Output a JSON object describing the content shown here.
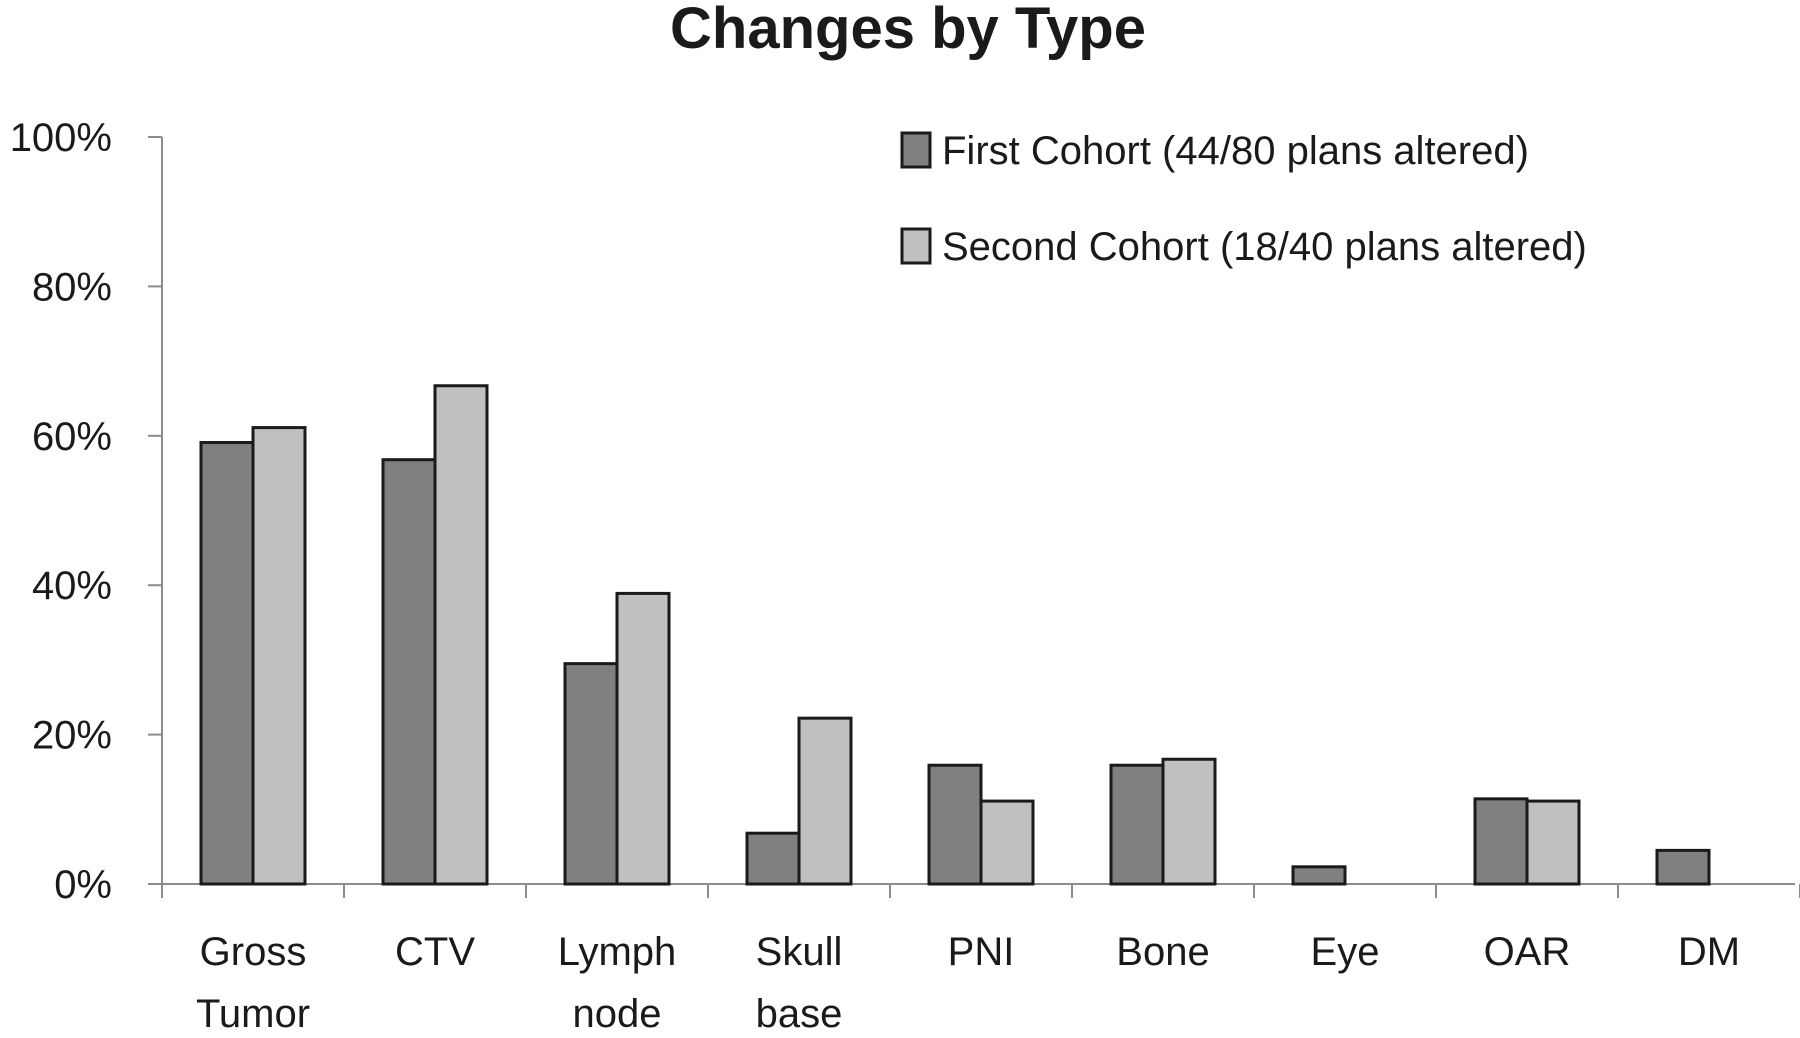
{
  "chart_data": {
    "type": "bar",
    "title": "Changes by Type",
    "xlabel": "",
    "ylabel": "",
    "ylim": [
      0,
      100
    ],
    "y_ticks": [
      "0%",
      "20%",
      "40%",
      "60%",
      "80%",
      "100%"
    ],
    "y_tick_values": [
      0,
      20,
      40,
      60,
      80,
      100
    ],
    "categories": [
      [
        "Gross",
        "Tumor"
      ],
      [
        "CTV"
      ],
      [
        "Lymph",
        "node"
      ],
      [
        "Skull",
        "base"
      ],
      [
        "PNI"
      ],
      [
        "Bone"
      ],
      [
        "Eye"
      ],
      [
        "OAR"
      ],
      [
        "DM"
      ]
    ],
    "series": [
      {
        "name": "First Cohort (44/80 plans altered)",
        "color": "#808080",
        "values": [
          59.1,
          56.8,
          29.5,
          6.8,
          15.9,
          15.9,
          2.3,
          11.4,
          4.5
        ]
      },
      {
        "name": "Second Cohort (18/40 plans altered)",
        "color": "#c0c0c0",
        "values": [
          61.1,
          66.7,
          38.9,
          22.2,
          11.1,
          16.7,
          0,
          11.1,
          0
        ]
      }
    ],
    "legend_position": "top-right",
    "grid": false
  }
}
